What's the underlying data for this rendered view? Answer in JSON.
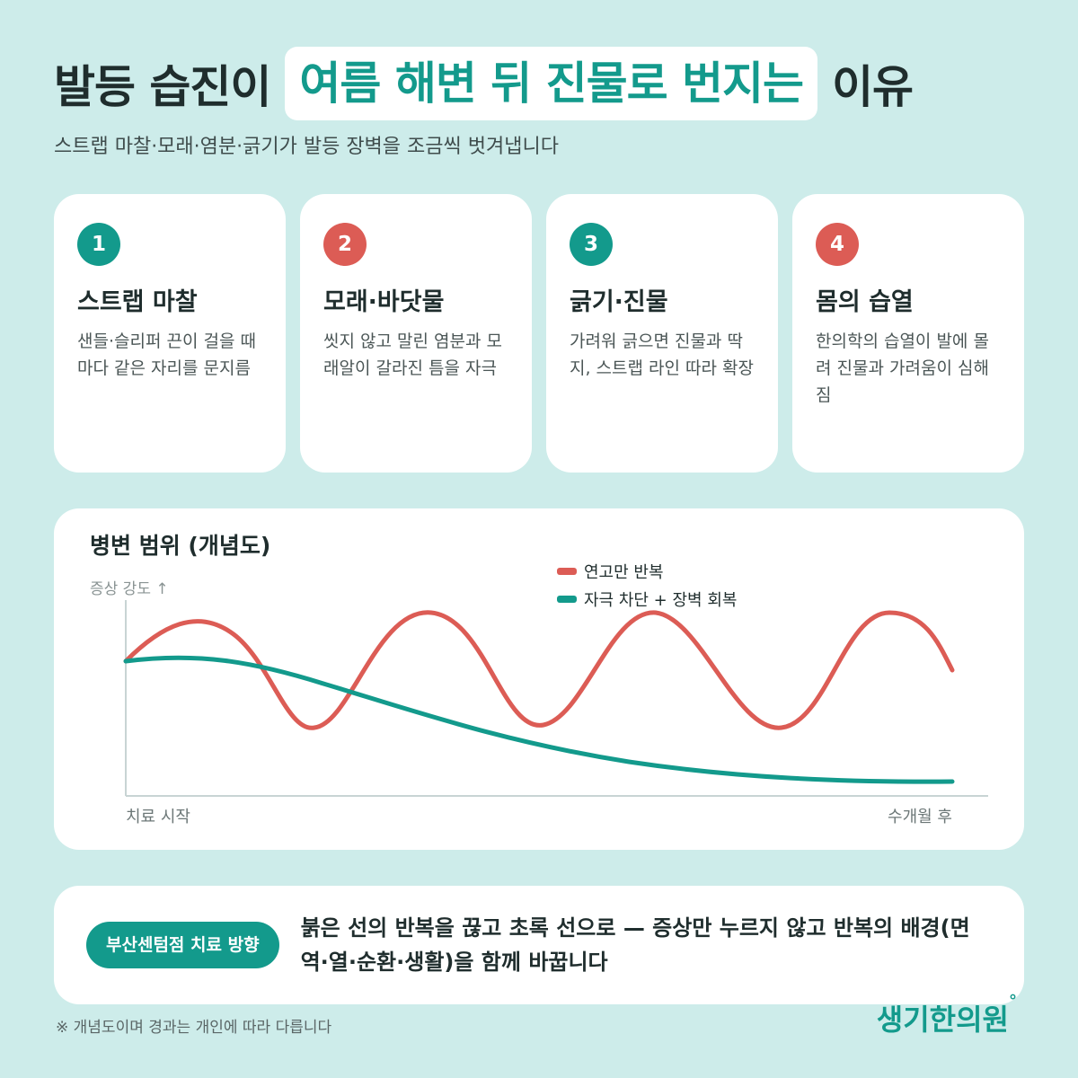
{
  "header": {
    "title_before": "발등 습진이",
    "title_highlight": "여름 해변 뒤 진물로 번지는",
    "title_after": "이유",
    "subtitle": "스트랩 마찰·모래·염분·긁기가 발등 장벽을 조금씩 벗겨냅니다"
  },
  "cards": [
    {
      "num": "1",
      "title": "스트랩 마찰",
      "desc": "샌들·슬리퍼 끈이 걸을 때마다 같은 자리를 문지름",
      "color": "#139a8c"
    },
    {
      "num": "2",
      "title": "모래·바닷물",
      "desc": "씻지 않고 말린 염분과 모래알이 갈라진 틈을 자극",
      "color": "#dc5c55"
    },
    {
      "num": "3",
      "title": "긁기·진물",
      "desc": "가려워 긁으면 진물과 딱지, 스트랩 라인 따라 확장",
      "color": "#139a8c"
    },
    {
      "num": "4",
      "title": "몸의 습열",
      "desc": "한의학의 습열이 발에 몰려 진물과 가려움이 심해짐",
      "color": "#dc5c55"
    }
  ],
  "chart_data": {
    "type": "line",
    "title": "병변 범위 (개념도)",
    "ylabel": "증상 강도 ↑",
    "x_start_label": "치료 시작",
    "x_end_label": "수개월 후",
    "legend_position": "top-right",
    "series": [
      {
        "name": "연고만 반복",
        "color": "#dc5c55"
      },
      {
        "name": "자극 차단 + 장벽 회복",
        "color": "#139a8c"
      }
    ]
  },
  "bottom": {
    "pill": "부산센텀점 치료 방향",
    "message": "붉은 선의 반복을 끊고 초록 선으로 — 증상만 누르지 않고 반복의 배경(면역·열·순환·생활)을 함께 바꿉니다"
  },
  "footnote": "※ 개념도이며 경과는 개인에 따라 다릅니다",
  "brand": {
    "name": "생기한의원",
    "mark": "°"
  }
}
